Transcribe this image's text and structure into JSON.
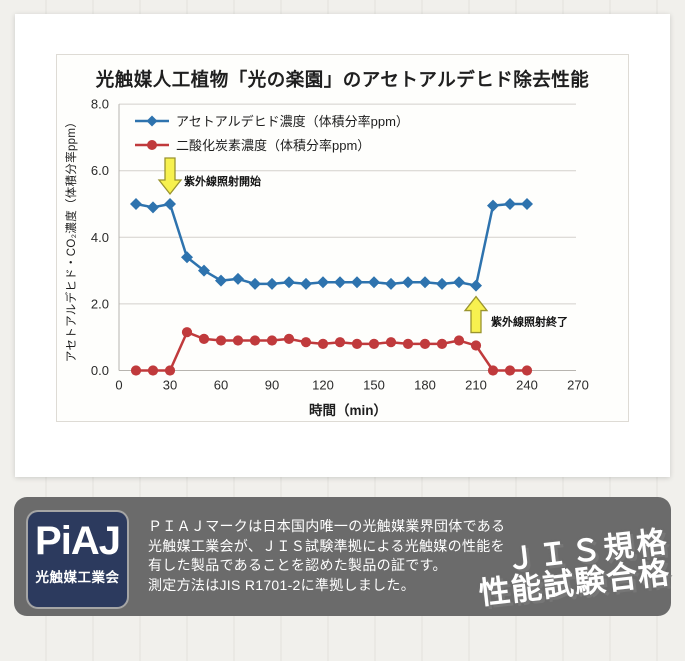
{
  "chart_data": {
    "type": "line",
    "title": "光触媒人工植物「光の楽園」のアセトアルデヒド除去性能",
    "xlabel": "時間（min）",
    "ylabel": "アセトアルデヒド・CO₂濃度（体積分率ppm）",
    "xlim": [
      0,
      270
    ],
    "ylim": [
      0,
      8
    ],
    "xticks": [
      0,
      30,
      60,
      90,
      120,
      150,
      180,
      210,
      240,
      270
    ],
    "ytick_step": 2,
    "grid": true,
    "legend_position": "top-left",
    "x": [
      10,
      20,
      30,
      40,
      50,
      60,
      70,
      80,
      90,
      100,
      110,
      120,
      130,
      140,
      150,
      160,
      170,
      180,
      190,
      200,
      210,
      220,
      230,
      240
    ],
    "series": [
      {
        "name": "アセトアルデヒド濃度（体積分率ppm）",
        "color": "#2e73ae",
        "marker": "diamond",
        "values": [
          5.0,
          4.9,
          5.0,
          3.4,
          3.0,
          2.7,
          2.75,
          2.6,
          2.6,
          2.65,
          2.6,
          2.65,
          2.65,
          2.65,
          2.65,
          2.6,
          2.65,
          2.65,
          2.6,
          2.65,
          2.55,
          4.95,
          5.0,
          5.0
        ]
      },
      {
        "name": "二酸化炭素濃度（体積分率ppm）",
        "color": "#c03a3c",
        "marker": "circle",
        "values": [
          0.0,
          0.0,
          0.0,
          1.15,
          0.95,
          0.9,
          0.9,
          0.9,
          0.9,
          0.95,
          0.85,
          0.8,
          0.85,
          0.8,
          0.8,
          0.85,
          0.8,
          0.8,
          0.8,
          0.9,
          0.75,
          0.0,
          0.0,
          0.0
        ]
      }
    ],
    "annotations": [
      {
        "text": "紫外線照射開始",
        "x_min": 30,
        "direction": "down",
        "arrow_color": "#f7f14f"
      },
      {
        "text": "紫外線照射終了",
        "x_min": 210,
        "direction": "up",
        "arrow_color": "#f7f14f"
      }
    ]
  },
  "footer": {
    "panel_color": "#6b6b6b",
    "logo": {
      "text": "PiAJ",
      "subtext": "光触媒工業会",
      "bg_color": "#2c3a5e"
    },
    "description_lines": [
      "ＰＩＡＪマークは日本国内唯一の光触媒業界団体である",
      "光触媒工業会が、ＪＩＳ試験準拠による光触媒の性能を",
      "有した製品であることを認めた製品の証です。",
      "測定方法はJIS R1701-2に準拠しました。"
    ],
    "badge": {
      "line1": "ＪＩＳ規格",
      "line2": "性能試験合格"
    }
  }
}
